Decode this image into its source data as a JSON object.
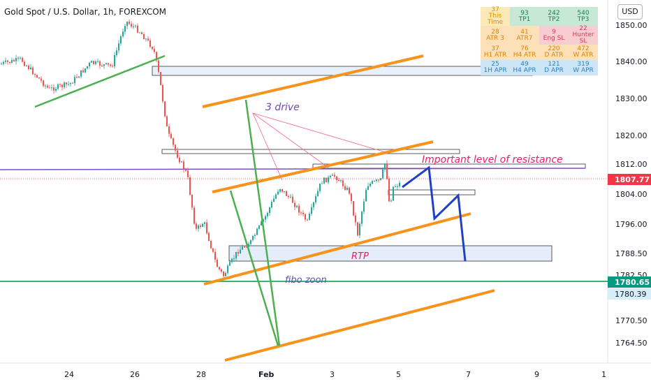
{
  "chart_data": {
    "type": "candlestick",
    "title": "Gold Spot / U.S. Dollar, 1h, FOREXCOM",
    "currency_button": "USD",
    "y_ticks": [
      "1850.00",
      "1840.00",
      "1830.00",
      "1820.00",
      "1812.00",
      "1804.00",
      "1796.00",
      "1788.50",
      "1782.50",
      "1770.50",
      "1764.50"
    ],
    "x_ticks": [
      "24",
      "26",
      "28",
      "Feb",
      "3",
      "5",
      "7",
      "9",
      "1"
    ],
    "price_labels": [
      {
        "value": "1807.77",
        "color": "#f23645"
      },
      {
        "value": "1780.65",
        "color": "#089981"
      },
      {
        "value": "1780.39",
        "color": "#d6eefa"
      }
    ],
    "annotations": {
      "three_drive": "3 drive",
      "resistance": "Important level of resistance",
      "rtp": "RTP",
      "fibo": "fibo zoon"
    },
    "stats_table": [
      [
        {
          "value": "37",
          "label": "This Time"
        },
        {
          "value": "93",
          "label": "TP1"
        },
        {
          "value": "242",
          "label": "TP2"
        },
        {
          "value": "540",
          "label": "TP3"
        }
      ],
      [
        {
          "value": "28",
          "label": "ATR 3"
        },
        {
          "value": "41",
          "label": "ATR7"
        },
        {
          "value": "9",
          "label": "Eng SL"
        },
        {
          "value": "22",
          "label": "Hunter SL"
        }
      ],
      [
        {
          "value": "37",
          "label": "H1 ATR"
        },
        {
          "value": "76",
          "label": "H4 ATR"
        },
        {
          "value": "220",
          "label": "D ATR"
        },
        {
          "value": "472",
          "label": "W ATR"
        }
      ],
      [
        {
          "value": "25",
          "label": "1H APR"
        },
        {
          "value": "49",
          "label": "H4 APR"
        },
        {
          "value": "121",
          "label": "D APR"
        },
        {
          "value": "319",
          "label": "W APR"
        }
      ]
    ],
    "colors": {
      "up": "#26a69a",
      "down": "#ef5350",
      "channel": "#f7931a",
      "green_line": "#4caf50",
      "projection": "#1e40c8",
      "resistance_line": "#7b4fc4",
      "support_line": "#3cb371",
      "text_purple": "#6a4bb3",
      "text_pink": "#e91e63"
    }
  }
}
